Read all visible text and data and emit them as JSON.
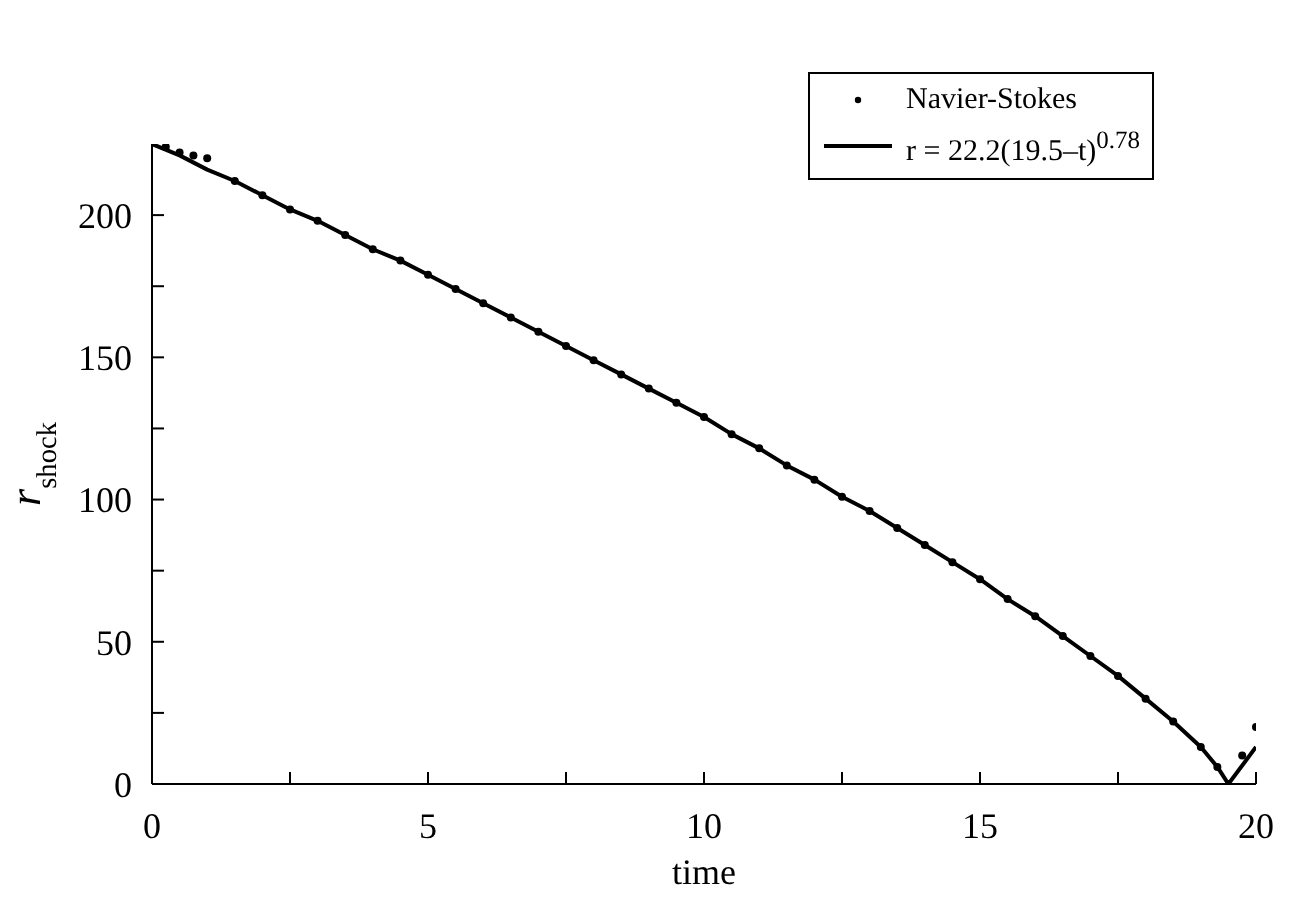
{
  "chart_data": {
    "type": "line",
    "xlabel": "time",
    "ylabel": "r$_{shock}$",
    "xlim": [
      0,
      20
    ],
    "xticks": [
      0,
      {
        "value": 2.5,
        "label": null
      },
      5,
      {
        "value": 7.5,
        "label": null
      },
      10,
      {
        "value": 12.5,
        "label": null
      },
      15,
      {
        "value": 17.5,
        "label": null
      },
      20
    ],
    "ylim": [
      0,
      225
    ],
    "yticks": [
      0,
      {
        "value": 25,
        "label": null
      },
      50,
      {
        "value": 75,
        "label": null
      },
      100,
      {
        "value": 125,
        "label": null
      },
      150,
      {
        "value": 175,
        "label": null
      },
      200
    ],
    "grid": false,
    "legend": "top right",
    "series": [
      {
        "name": "Navier-Stokes",
        "type": "scatter",
        "marker": "circle",
        "color": "#000000",
        "x": [
          0.25,
          0.5,
          0.75,
          1,
          1.5,
          2,
          2.5,
          3,
          3.5,
          4,
          4.5,
          5,
          5.5,
          6,
          6.5,
          7,
          7.5,
          8,
          8.5,
          9,
          9.5,
          10,
          10.5,
          11,
          11.5,
          12,
          12.5,
          13,
          13.5,
          14,
          14.5,
          15,
          15.5,
          16,
          16.5,
          17,
          17.5,
          18,
          18.5,
          19,
          19.3,
          19.75,
          20
        ],
        "values": [
          224,
          222,
          221,
          220,
          212,
          207,
          202,
          198,
          193,
          188,
          184,
          179,
          174,
          169,
          164,
          159,
          154,
          149,
          144,
          139,
          134,
          129,
          123,
          118,
          112,
          107,
          101,
          96,
          90,
          84,
          78,
          72,
          65,
          59,
          52,
          45,
          38,
          30,
          22,
          13,
          6,
          10,
          20
        ]
      },
      {
        "name": "r = 22.2(19.5–t)$^{0.78}$",
        "color": "#000000",
        "x": [
          0,
          0.5,
          1,
          1.5,
          2,
          2.5,
          3,
          3.5,
          4,
          4.5,
          5,
          5.5,
          6,
          6.5,
          7,
          7.5,
          8,
          8.5,
          9,
          9.5,
          10,
          10.5,
          11,
          11.5,
          12,
          12.5,
          13,
          13.5,
          14,
          14.5,
          15,
          15.5,
          16,
          16.5,
          17,
          17.5,
          18,
          18.5,
          19,
          19.3,
          19.5,
          20
        ],
        "values": [
          225,
          221,
          216,
          212,
          207,
          202,
          198,
          193,
          188,
          184,
          179,
          174,
          169,
          164,
          159,
          154,
          149,
          144,
          139,
          134,
          129,
          123,
          118,
          112,
          107,
          101,
          96,
          90,
          84,
          78,
          72,
          65,
          59,
          52,
          45,
          38,
          30,
          22,
          13,
          6,
          0,
          13
        ]
      }
    ]
  }
}
